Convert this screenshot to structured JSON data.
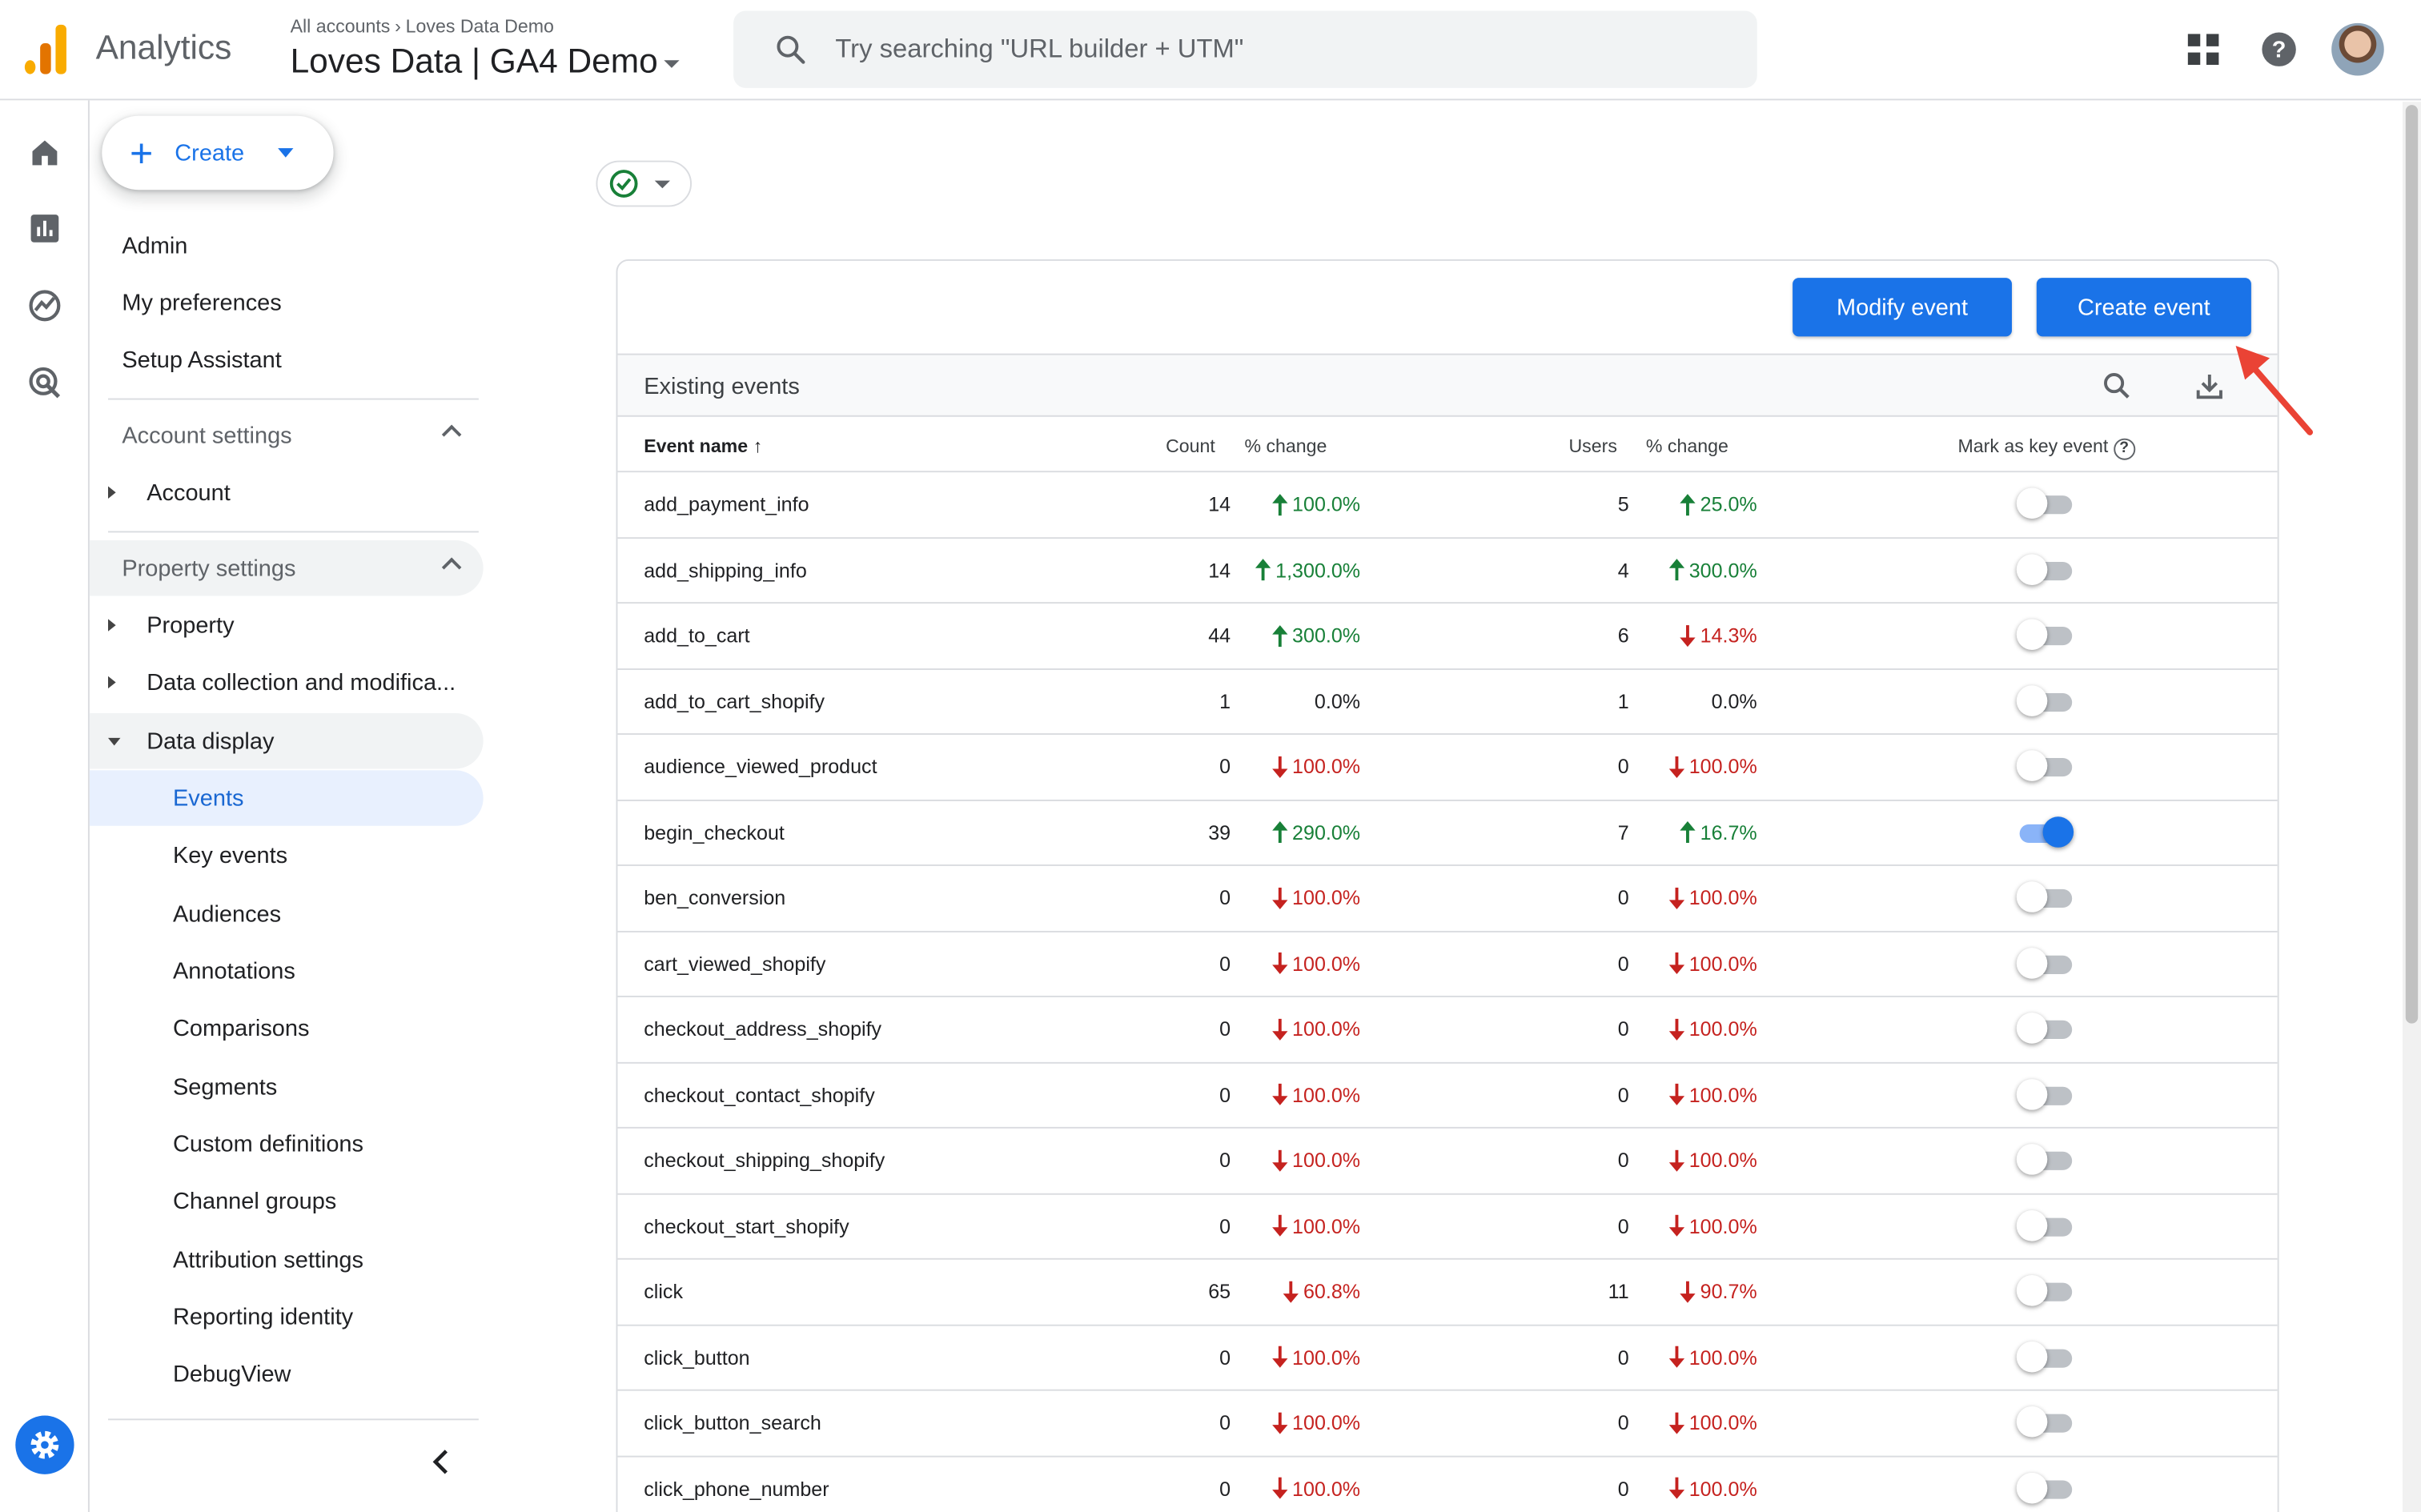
{
  "header": {
    "app_name": "Analytics",
    "breadcrumb": [
      "All accounts",
      "Loves Data Demo"
    ],
    "property_name": "Loves Data | GA4 Demo",
    "search_placeholder": "Try searching \"URL builder + UTM\""
  },
  "create_button": {
    "label": "Create"
  },
  "nav": {
    "admin": "Admin",
    "my_preferences": "My preferences",
    "setup_assistant": "Setup Assistant",
    "account_settings": "Account settings",
    "account": "Account",
    "property_settings": "Property settings",
    "property": "Property",
    "data_collection": "Data collection and modifica...",
    "data_display": "Data display",
    "events": "Events",
    "key_events": "Key events",
    "audiences": "Audiences",
    "annotations": "Annotations",
    "comparisons": "Comparisons",
    "segments": "Segments",
    "custom_definitions": "Custom definitions",
    "channel_groups": "Channel groups",
    "attribution_settings": "Attribution settings",
    "reporting_identity": "Reporting identity",
    "debugview": "DebugView"
  },
  "buttons": {
    "modify_event": "Modify event",
    "create_event": "Create event"
  },
  "table": {
    "title": "Existing events",
    "headers": {
      "event_name": "Event name",
      "count": "Count",
      "count_change": "% change",
      "users": "Users",
      "users_change": "% change",
      "mark_key_event": "Mark as key event"
    },
    "rows": [
      {
        "name": "add_payment_info",
        "count": "14",
        "count_change": "100.0%",
        "count_dir": "up",
        "users": "5",
        "users_change": "25.0%",
        "users_dir": "up",
        "key_event": false
      },
      {
        "name": "add_shipping_info",
        "count": "14",
        "count_change": "1,300.0%",
        "count_dir": "up",
        "users": "4",
        "users_change": "300.0%",
        "users_dir": "up",
        "key_event": false
      },
      {
        "name": "add_to_cart",
        "count": "44",
        "count_change": "300.0%",
        "count_dir": "up",
        "users": "6",
        "users_change": "14.3%",
        "users_dir": "down",
        "key_event": false
      },
      {
        "name": "add_to_cart_shopify",
        "count": "1",
        "count_change": "0.0%",
        "count_dir": "flat",
        "users": "1",
        "users_change": "0.0%",
        "users_dir": "flat",
        "key_event": false
      },
      {
        "name": "audience_viewed_product",
        "count": "0",
        "count_change": "100.0%",
        "count_dir": "down",
        "users": "0",
        "users_change": "100.0%",
        "users_dir": "down",
        "key_event": false
      },
      {
        "name": "begin_checkout",
        "count": "39",
        "count_change": "290.0%",
        "count_dir": "up",
        "users": "7",
        "users_change": "16.7%",
        "users_dir": "up",
        "key_event": true
      },
      {
        "name": "ben_conversion",
        "count": "0",
        "count_change": "100.0%",
        "count_dir": "down",
        "users": "0",
        "users_change": "100.0%",
        "users_dir": "down",
        "key_event": false
      },
      {
        "name": "cart_viewed_shopify",
        "count": "0",
        "count_change": "100.0%",
        "count_dir": "down",
        "users": "0",
        "users_change": "100.0%",
        "users_dir": "down",
        "key_event": false
      },
      {
        "name": "checkout_address_shopify",
        "count": "0",
        "count_change": "100.0%",
        "count_dir": "down",
        "users": "0",
        "users_change": "100.0%",
        "users_dir": "down",
        "key_event": false
      },
      {
        "name": "checkout_contact_shopify",
        "count": "0",
        "count_change": "100.0%",
        "count_dir": "down",
        "users": "0",
        "users_change": "100.0%",
        "users_dir": "down",
        "key_event": false
      },
      {
        "name": "checkout_shipping_shopify",
        "count": "0",
        "count_change": "100.0%",
        "count_dir": "down",
        "users": "0",
        "users_change": "100.0%",
        "users_dir": "down",
        "key_event": false
      },
      {
        "name": "checkout_start_shopify",
        "count": "0",
        "count_change": "100.0%",
        "count_dir": "down",
        "users": "0",
        "users_change": "100.0%",
        "users_dir": "down",
        "key_event": false
      },
      {
        "name": "click",
        "count": "65",
        "count_change": "60.8%",
        "count_dir": "down",
        "users": "11",
        "users_change": "90.7%",
        "users_dir": "down",
        "key_event": false
      },
      {
        "name": "click_button",
        "count": "0",
        "count_change": "100.0%",
        "count_dir": "down",
        "users": "0",
        "users_change": "100.0%",
        "users_dir": "down",
        "key_event": false
      },
      {
        "name": "click_button_search",
        "count": "0",
        "count_change": "100.0%",
        "count_dir": "down",
        "users": "0",
        "users_change": "100.0%",
        "users_dir": "down",
        "key_event": false
      },
      {
        "name": "click_phone_number",
        "count": "0",
        "count_change": "100.0%",
        "count_dir": "down",
        "users": "0",
        "users_change": "100.0%",
        "users_dir": "down",
        "key_event": false
      }
    ]
  },
  "colors": {
    "accent": "#1a73e8",
    "up": "#188038",
    "down": "#c5221f",
    "annotation_arrow": "#ea4335"
  }
}
